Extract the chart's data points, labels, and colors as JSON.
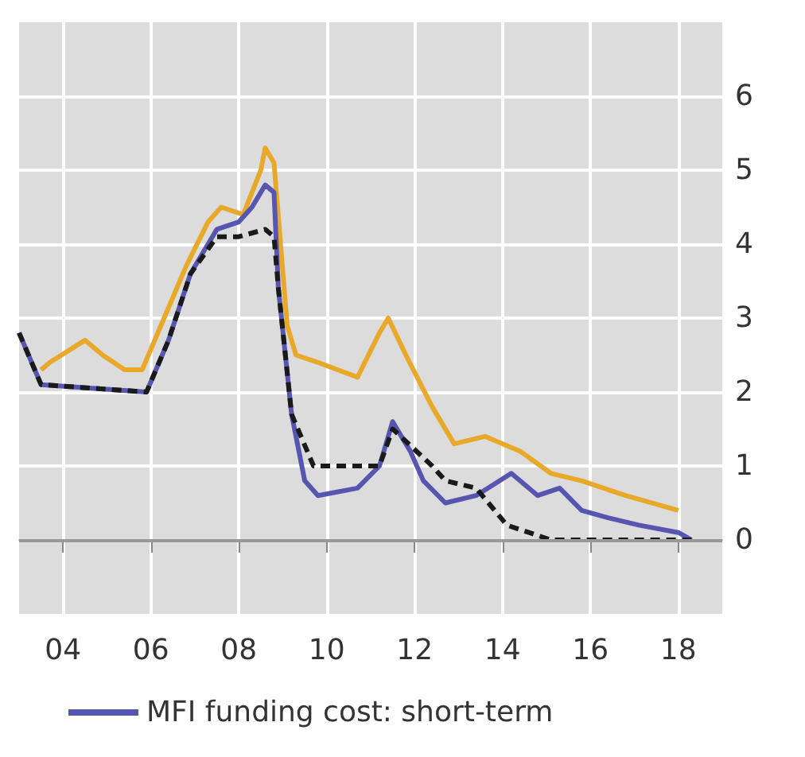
{
  "chart_data": {
    "type": "line",
    "xlim": [
      2003,
      2019
    ],
    "xticks": [
      {
        "value": 2004,
        "label": "04"
      },
      {
        "value": 2006,
        "label": "06"
      },
      {
        "value": 2008,
        "label": "08"
      },
      {
        "value": 2010,
        "label": "10"
      },
      {
        "value": 2012,
        "label": "12"
      },
      {
        "value": 2014,
        "label": "14"
      },
      {
        "value": 2016,
        "label": "16"
      },
      {
        "value": 2018,
        "label": "18"
      }
    ],
    "ylim": [
      -1,
      7
    ],
    "yticks": [
      0,
      1,
      2,
      3,
      4,
      5,
      6
    ],
    "grid": true,
    "legend": "bottom",
    "marker": "none",
    "ref_lines": [
      {
        "axis": "y",
        "value": 0,
        "color": "#999999"
      }
    ],
    "series": [
      {
        "color": "#e8a92a",
        "x": [
          2003.5,
          2003.7,
          2004.5,
          2004.9,
          2005.4,
          2005.8,
          2006.3,
          2006.8,
          2007.3,
          2007.6,
          2008.1,
          2008.5,
          2008.6,
          2008.8,
          2009.1,
          2009.3,
          2009.8,
          2010.7,
          2011.2,
          2011.4,
          2011.8,
          2012.4,
          2012.9,
          2013.6,
          2014.4,
          2015.1,
          2015.8,
          2016.8,
          2018.0
        ],
        "values": [
          2.3,
          2.4,
          2.7,
          2.5,
          2.3,
          2.3,
          3.0,
          3.7,
          4.3,
          4.5,
          4.4,
          5.0,
          5.3,
          5.1,
          2.9,
          2.5,
          2.4,
          2.2,
          2.8,
          3.0,
          2.5,
          1.8,
          1.3,
          1.4,
          1.2,
          0.9,
          0.8,
          0.6,
          0.4
        ]
      },
      {
        "color": "#1a1a1a",
        "line_style": "dashed",
        "x": [
          2003.0,
          2003.5,
          2005.9,
          2006.4,
          2006.9,
          2007.5,
          2008.0,
          2008.6,
          2008.8,
          2008.9,
          2009.2,
          2009.7,
          2011.2,
          2011.5,
          2012.4,
          2012.7,
          2013.4,
          2014.1,
          2014.6,
          2015.1,
          2018.3
        ],
        "values": [
          2.8,
          2.1,
          2.0,
          2.7,
          3.6,
          4.1,
          4.1,
          4.2,
          4.1,
          3.4,
          1.7,
          1.0,
          1.0,
          1.5,
          1.0,
          0.8,
          0.7,
          0.2,
          0.1,
          0.0,
          0.0
        ]
      },
      {
        "name": "MFI funding cost: short-term",
        "color": "#5656b0",
        "x": [
          2003.0,
          2003.5,
          2005.9,
          2006.4,
          2006.9,
          2007.5,
          2008.0,
          2008.3,
          2008.6,
          2008.8,
          2008.9,
          2009.2,
          2009.5,
          2009.8,
          2010.7,
          2011.2,
          2011.5,
          2011.9,
          2012.2,
          2012.7,
          2013.4,
          2014.2,
          2014.8,
          2015.3,
          2015.8,
          2016.4,
          2017.1,
          2018.0,
          2018.3
        ],
        "values": [
          2.8,
          2.1,
          2.0,
          2.7,
          3.6,
          4.2,
          4.3,
          4.5,
          4.8,
          4.7,
          3.4,
          1.7,
          0.8,
          0.6,
          0.7,
          1.0,
          1.6,
          1.2,
          0.8,
          0.5,
          0.6,
          0.9,
          0.6,
          0.7,
          0.4,
          0.3,
          0.2,
          0.1,
          0.0
        ]
      }
    ]
  }
}
